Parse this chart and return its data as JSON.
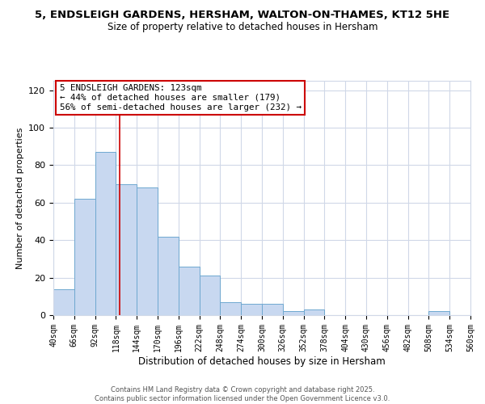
{
  "title": "5, ENDSLEIGH GARDENS, HERSHAM, WALTON-ON-THAMES, KT12 5HE",
  "subtitle": "Size of property relative to detached houses in Hersham",
  "xlabel": "Distribution of detached houses by size in Hersham",
  "ylabel": "Number of detached properties",
  "bar_values": [
    14,
    62,
    87,
    70,
    68,
    42,
    26,
    21,
    7,
    6,
    6,
    2,
    3,
    0,
    0,
    0,
    0,
    0,
    2,
    0
  ],
  "bin_edges": [
    40,
    66,
    92,
    118,
    144,
    170,
    196,
    222,
    248,
    274,
    300,
    326,
    352,
    378,
    404,
    430,
    456,
    482,
    508,
    534,
    560
  ],
  "tick_labels": [
    "40sqm",
    "66sqm",
    "92sqm",
    "118sqm",
    "144sqm",
    "170sqm",
    "196sqm",
    "222sqm",
    "248sqm",
    "274sqm",
    "300sqm",
    "326sqm",
    "352sqm",
    "378sqm",
    "404sqm",
    "430sqm",
    "456sqm",
    "482sqm",
    "508sqm",
    "534sqm",
    "560sqm"
  ],
  "bar_color": "#c8d8f0",
  "bar_edge_color": "#6fa8d0",
  "vline_x": 123,
  "vline_color": "#cc0000",
  "ylim": [
    0,
    125
  ],
  "yticks": [
    0,
    20,
    40,
    60,
    80,
    100,
    120
  ],
  "annotation_title": "5 ENDSLEIGH GARDENS: 123sqm",
  "annotation_line1": "← 44% of detached houses are smaller (179)",
  "annotation_line2": "56% of semi-detached houses are larger (232) →",
  "annotation_box_color": "#ffffff",
  "annotation_box_edge": "#cc0000",
  "footer1": "Contains HM Land Registry data © Crown copyright and database right 2025.",
  "footer2": "Contains public sector information licensed under the Open Government Licence v3.0.",
  "background_color": "#ffffff",
  "grid_color": "#d0d8e8",
  "title_fontsize": 9.5,
  "subtitle_fontsize": 8.5,
  "xlabel_fontsize": 8.5,
  "ylabel_fontsize": 8.0,
  "tick_fontsize": 7.0,
  "annotation_fontsize": 7.8,
  "footer_fontsize": 6.0
}
